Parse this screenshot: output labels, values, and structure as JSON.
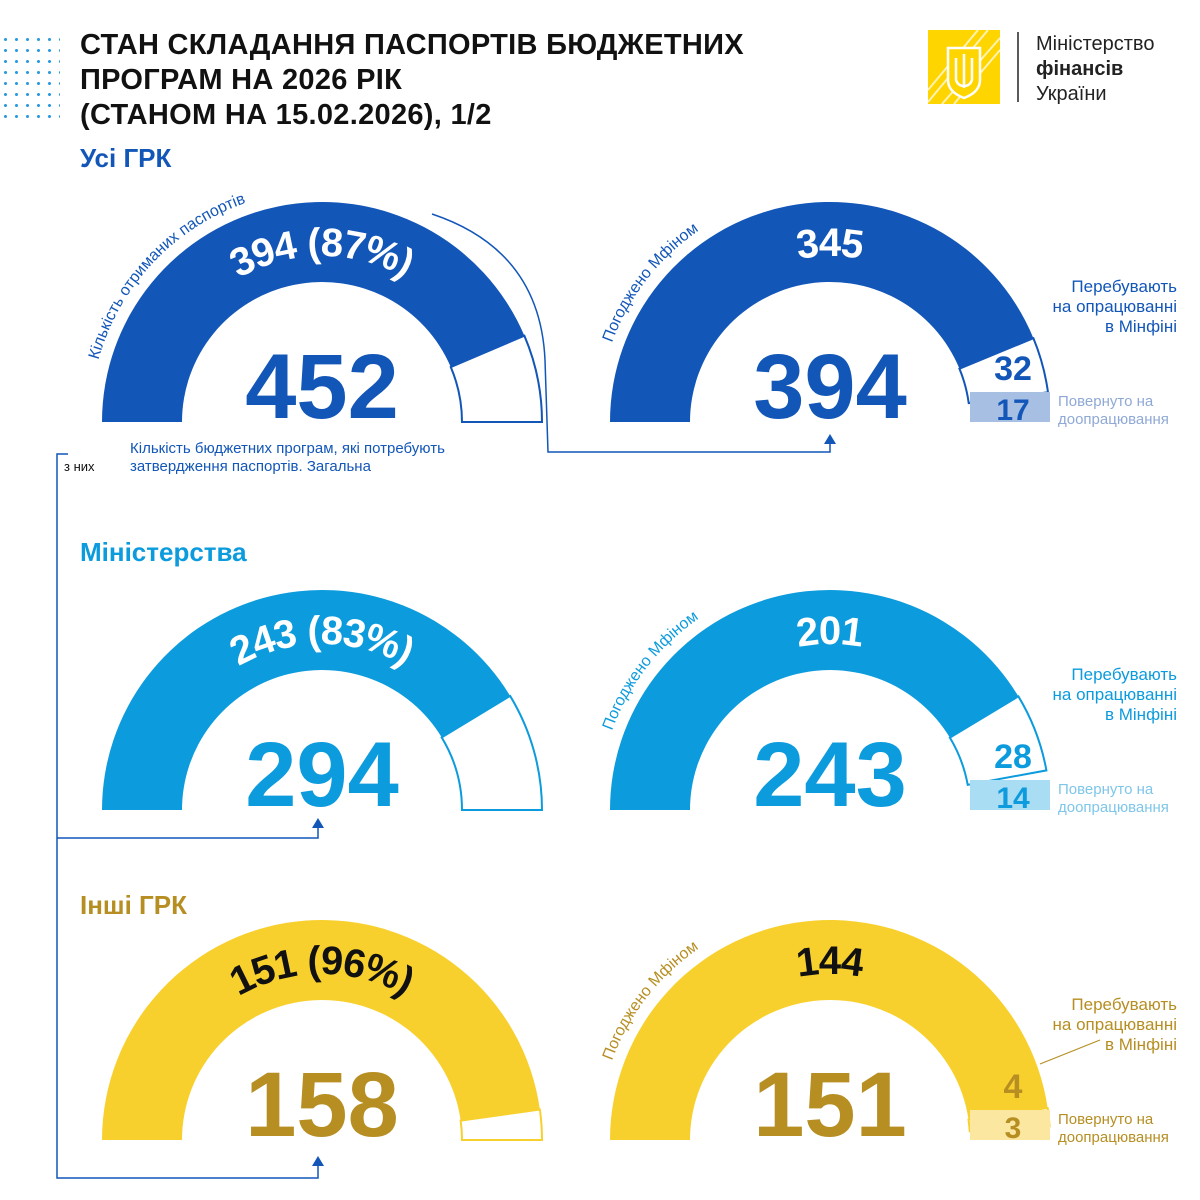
{
  "header": {
    "title_lines": [
      "СТАН СКЛАДАННЯ ПАСПОРТІВ БЮДЖЕТНИХ",
      "ПРОГРАМ НА 2026 РІК",
      "(СТАНОМ НА 15.02.2026), 1/2"
    ],
    "logo": {
      "line1": "Міністерство",
      "line2": "фінансів",
      "line3": "України",
      "color": "#FFD500"
    }
  },
  "annotations": {
    "received_label": "Кількість отриманих паспортів",
    "approved_label": "Погоджено Мфіном",
    "of_them": "з них",
    "total_note_1": "Кількість бюджетних програм, які потребують",
    "total_note_2": "затвердження паспортів. Загальна",
    "in_progress_1": "Перебувають",
    "in_progress_2": "на опрацюванні",
    "in_progress_3": "в Мінфіні",
    "returned_1": "Повернуто на",
    "returned_2": "доопрацювання"
  },
  "colors": {
    "dark_blue": "#1256B8",
    "light_blue": "#0C9BDD",
    "yellow": "#F8D02E",
    "gold": "#B68E22"
  },
  "chart_data": [
    {
      "type": "gauge",
      "section": "Усі ГРК",
      "color": "#1256B8",
      "pale": "#A7BFE3",
      "text_color": "#1256B8",
      "arc_text_color": "#ffffff",
      "total": 452,
      "received": 394,
      "received_label": "394 (87%)",
      "approved": 345,
      "in_progress": 32,
      "returned": 17,
      "approved_total": 394
    },
    {
      "type": "gauge",
      "section": "Міністерства",
      "color": "#0C9BDD",
      "pale": "#A9DDF4",
      "text_color": "#0C9BDD",
      "arc_text_color": "#ffffff",
      "total": 294,
      "received": 243,
      "received_label": "243 (83%)",
      "approved": 201,
      "in_progress": 28,
      "returned": 14,
      "approved_total": 243
    },
    {
      "type": "gauge",
      "section": "Інші ГРК",
      "color": "#F8D02E",
      "pale": "#FBE7A0",
      "text_color": "#B68E22",
      "arc_text_color": "#111111",
      "total": 158,
      "received": 151,
      "received_label": "151 (96%)",
      "approved": 144,
      "in_progress": 4,
      "returned": 3,
      "approved_total": 151
    }
  ]
}
